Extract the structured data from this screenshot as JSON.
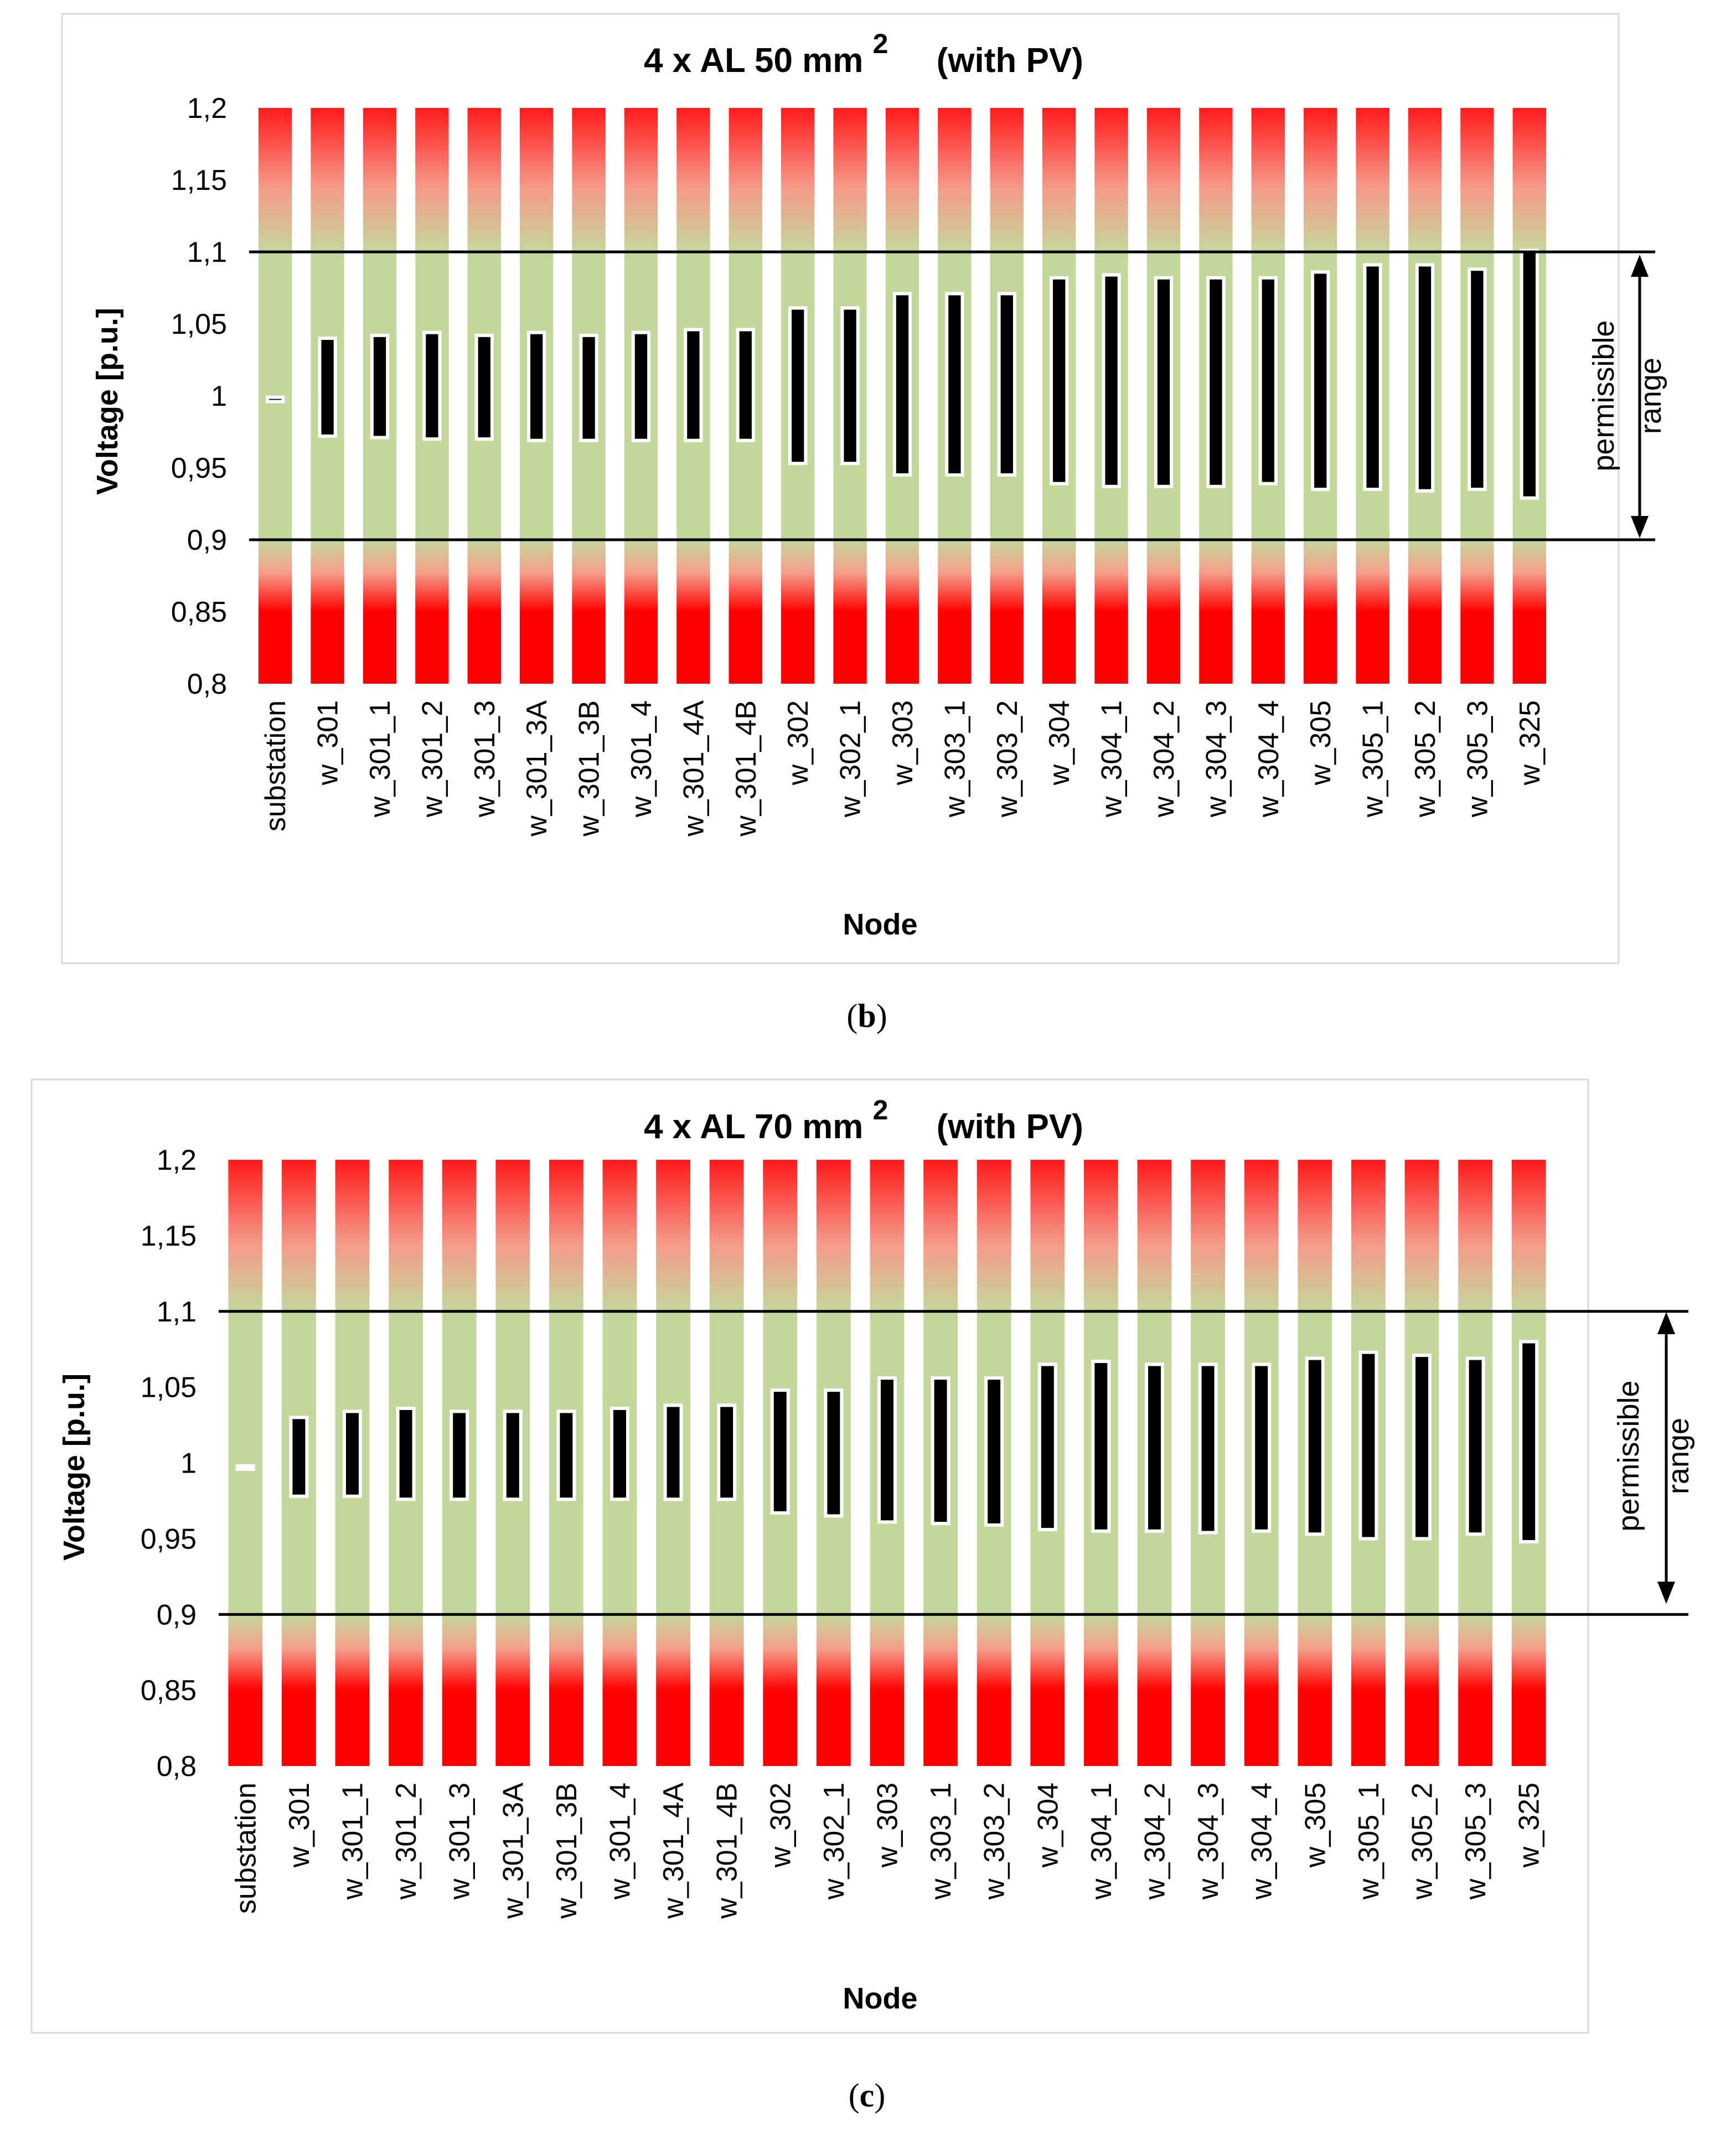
{
  "colors": {
    "red": "#ff0000",
    "green": "#c4d79b",
    "bar_fill": "#000000",
    "bar_border": "#ffffff",
    "frame": "#d9d9d9",
    "line": "#000000"
  },
  "chart_data": [
    {
      "type": "bar",
      "subtype": "floating range bars over colour-banded columns",
      "title_main": "4 x AL 50 mm",
      "title_sup": "2",
      "title_suffix": "(with PV)",
      "xlabel": "Node",
      "ylabel": "Voltage [p.u.]",
      "ylim": [
        0.8,
        1.2
      ],
      "y_ticks": [
        "1,2",
        "1,15",
        "1,1",
        "1,05",
        "1",
        "0,95",
        "0,9",
        "0,85",
        "0,8"
      ],
      "y_tick_values": [
        1.2,
        1.15,
        1.1,
        1.05,
        1.0,
        0.95,
        0.9,
        0.85,
        0.8
      ],
      "limit_lines": [
        1.1,
        0.9
      ],
      "annotation": [
        "permissible",
        "range"
      ],
      "caption": "b",
      "categories": [
        "substation",
        "w_301",
        "w_301_1",
        "w_301_2",
        "w_301_3",
        "w_301_3A",
        "w_301_3B",
        "w_301_4",
        "w_301_4A",
        "w_301_4B",
        "w_302",
        "w_302_1",
        "w_303",
        "w_303_1",
        "w_303_2",
        "w_304",
        "w_304_1",
        "w_304_2",
        "w_304_3",
        "w_304_4",
        "w_305",
        "w_305_1",
        "w_305_2",
        "w_305_3",
        "w_325"
      ],
      "min": [
        0.996,
        0.972,
        0.971,
        0.97,
        0.97,
        0.969,
        0.969,
        0.969,
        0.969,
        0.969,
        0.953,
        0.953,
        0.945,
        0.945,
        0.945,
        0.939,
        0.937,
        0.937,
        0.937,
        0.939,
        0.935,
        0.935,
        0.934,
        0.935,
        0.929
      ],
      "max": [
        0.999,
        1.04,
        1.042,
        1.044,
        1.042,
        1.044,
        1.042,
        1.044,
        1.046,
        1.046,
        1.061,
        1.061,
        1.071,
        1.071,
        1.071,
        1.082,
        1.084,
        1.082,
        1.082,
        1.082,
        1.086,
        1.091,
        1.091,
        1.088,
        1.101
      ]
    },
    {
      "type": "bar",
      "subtype": "floating range bars over colour-banded columns",
      "title_main": "4 x AL 70 mm",
      "title_sup": "2",
      "title_suffix": "(with PV)",
      "xlabel": "Node",
      "ylabel": "Voltage [p.u.]",
      "ylim": [
        0.8,
        1.2
      ],
      "y_ticks": [
        "1,2",
        "1,15",
        "1,1",
        "1,05",
        "1",
        "0,95",
        "0,9",
        "0,85",
        "0,8"
      ],
      "y_tick_values": [
        1.2,
        1.15,
        1.1,
        1.05,
        1.0,
        0.95,
        0.9,
        0.85,
        0.8
      ],
      "limit_lines": [
        1.1,
        0.9
      ],
      "annotation": [
        "permissible",
        "range"
      ],
      "caption": "c",
      "categories": [
        "substation",
        "w_301",
        "w_301_1",
        "w_301_2",
        "w_301_3",
        "w_301_3A",
        "w_301_3B",
        "w_301_4",
        "w_301_4A",
        "w_301_4B",
        "w_302",
        "w_302_1",
        "w_303",
        "w_303_1",
        "w_303_2",
        "w_304",
        "w_304_1",
        "w_304_2",
        "w_304_3",
        "w_304_4",
        "w_305",
        "w_305_1",
        "w_305_2",
        "w_305_3",
        "w_325"
      ],
      "min": [
        0.996,
        0.978,
        0.978,
        0.976,
        0.976,
        0.976,
        0.976,
        0.976,
        0.976,
        0.976,
        0.967,
        0.965,
        0.961,
        0.96,
        0.959,
        0.956,
        0.955,
        0.955,
        0.954,
        0.955,
        0.953,
        0.95,
        0.95,
        0.953,
        0.948
      ],
      "max": [
        0.998,
        1.03,
        1.034,
        1.036,
        1.034,
        1.034,
        1.034,
        1.036,
        1.038,
        1.038,
        1.048,
        1.048,
        1.056,
        1.056,
        1.056,
        1.065,
        1.067,
        1.065,
        1.065,
        1.065,
        1.069,
        1.073,
        1.071,
        1.069,
        1.08
      ]
    }
  ]
}
